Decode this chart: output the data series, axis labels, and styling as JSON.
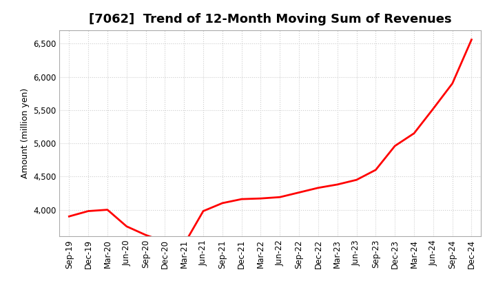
{
  "title": "[7062]  Trend of 12-Month Moving Sum of Revenues",
  "ylabel": "Amount (million yen)",
  "line_color": "#ff0000",
  "line_width": 2.0,
  "background_color": "#ffffff",
  "grid_color": "#cccccc",
  "x_labels": [
    "Sep-19",
    "Dec-19",
    "Mar-20",
    "Jun-20",
    "Sep-20",
    "Dec-20",
    "Mar-21",
    "Jun-21",
    "Sep-21",
    "Dec-21",
    "Mar-22",
    "Jun-22",
    "Sep-22",
    "Dec-22",
    "Mar-23",
    "Jun-23",
    "Sep-23",
    "Dec-23",
    "Mar-24",
    "Jun-24",
    "Sep-24",
    "Dec-24"
  ],
  "y_values": [
    3900,
    3980,
    4000,
    3750,
    3620,
    3520,
    3480,
    3980,
    4100,
    4160,
    4170,
    4190,
    4260,
    4330,
    4380,
    4450,
    4600,
    4960,
    5150,
    5520,
    5900,
    6560
  ],
  "ylim": [
    3600,
    6700
  ],
  "yticks": [
    4000,
    4500,
    5000,
    5500,
    6000,
    6500
  ],
  "title_fontsize": 13,
  "ylabel_fontsize": 9,
  "tick_fontsize": 8.5
}
